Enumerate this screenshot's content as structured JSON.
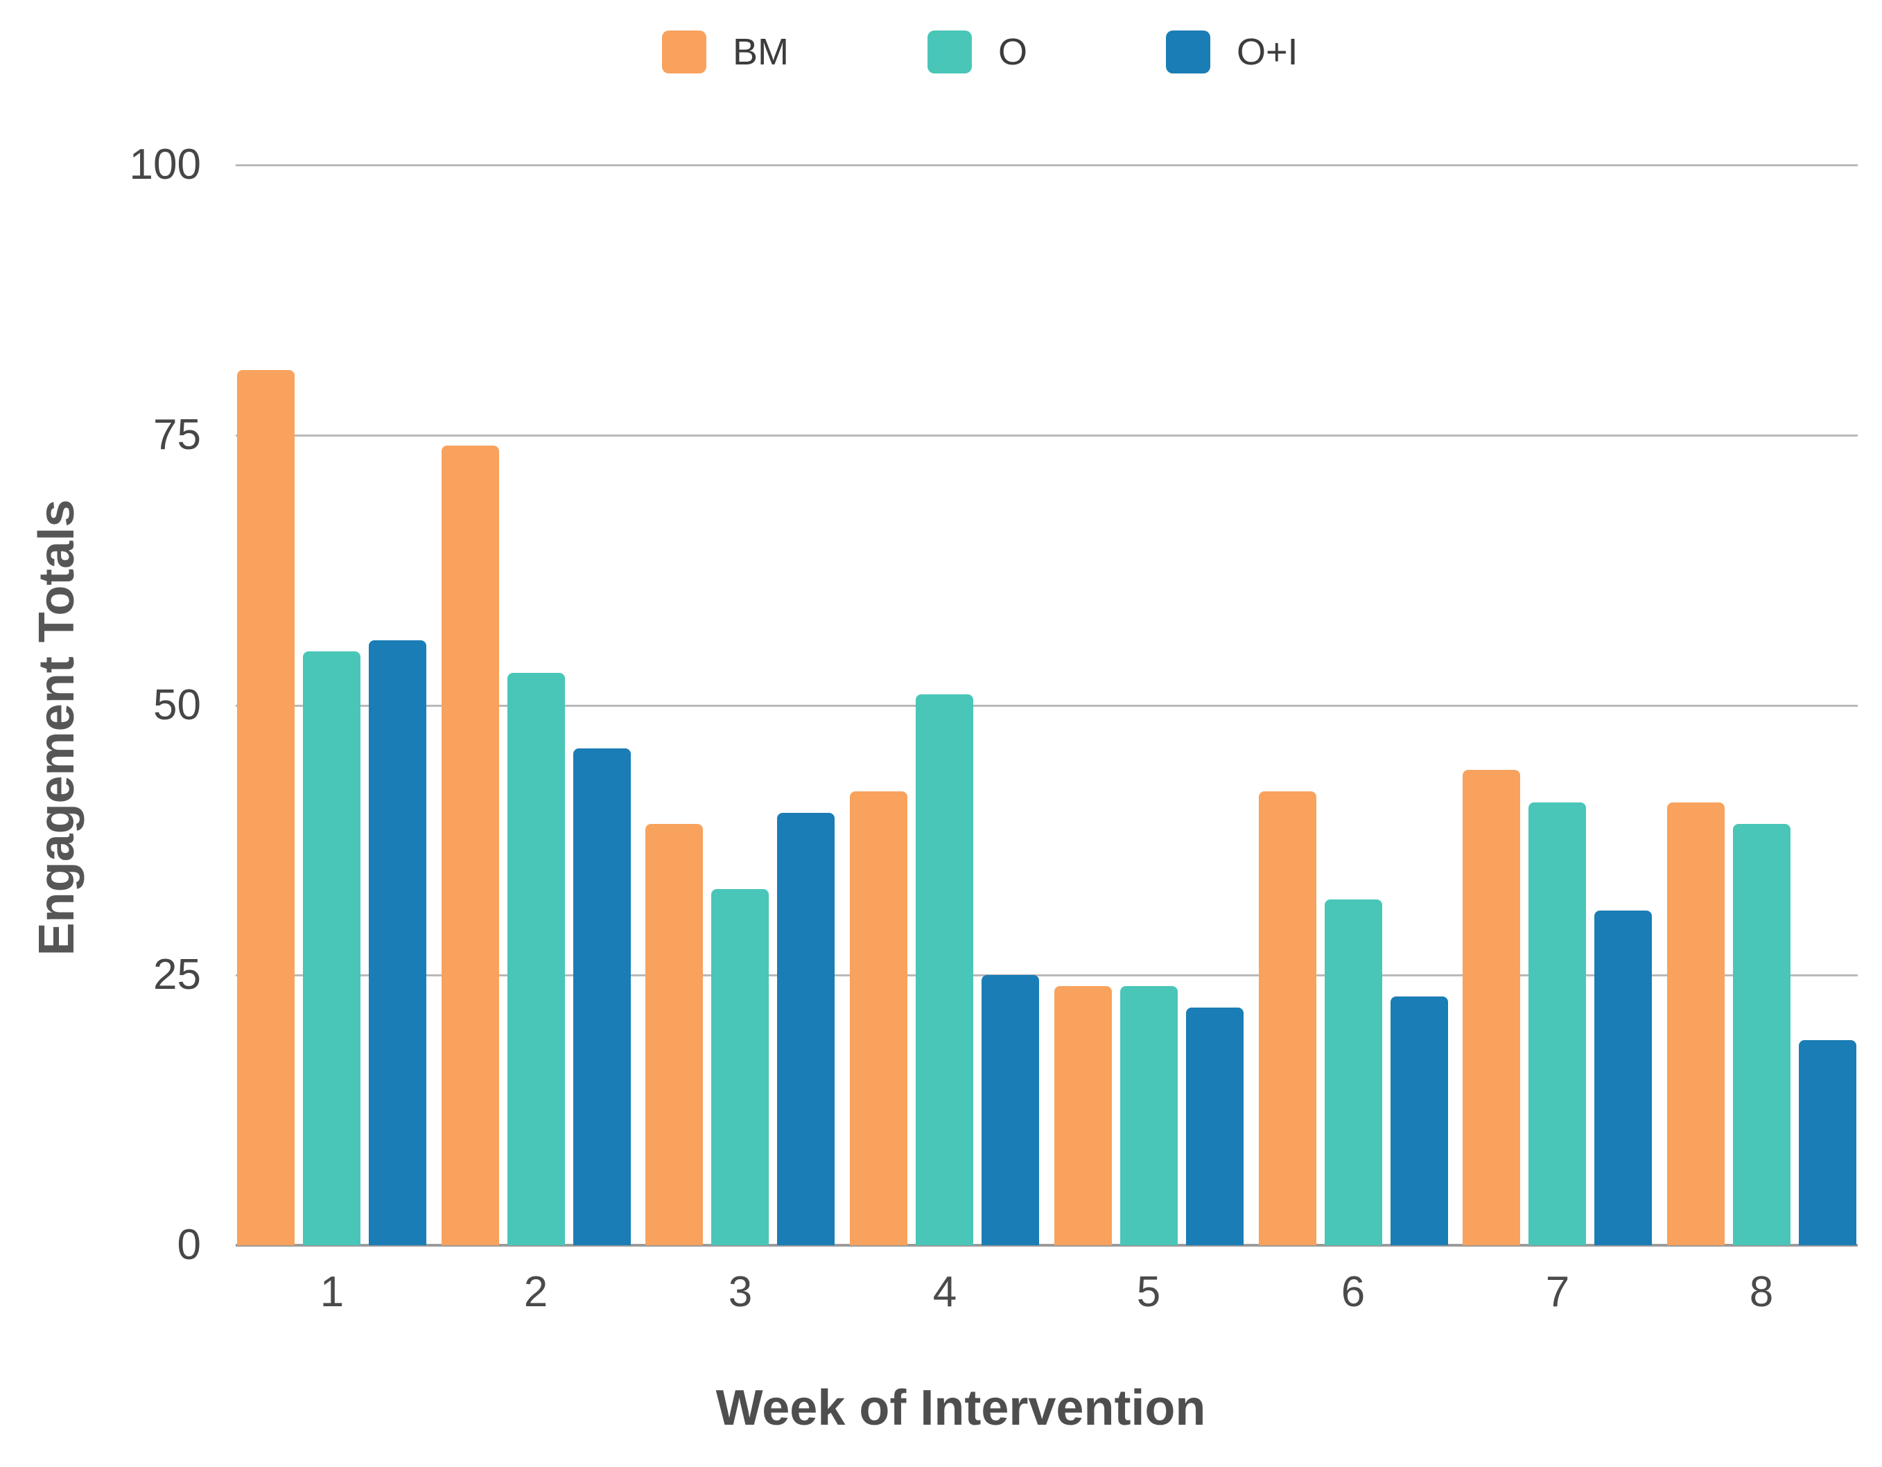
{
  "chart_data": {
    "type": "bar",
    "title": "",
    "categories": [
      "1",
      "2",
      "3",
      "4",
      "5",
      "6",
      "7",
      "8"
    ],
    "series": [
      {
        "name": "BM",
        "color": "#F8A25D",
        "values": [
          81,
          74,
          39,
          42,
          24,
          42,
          44,
          41
        ]
      },
      {
        "name": "O",
        "color": "#49C6B8",
        "values": [
          55,
          53,
          33,
          51,
          24,
          32,
          41,
          39
        ]
      },
      {
        "name": "O+I",
        "color": "#1A7DB5",
        "values": [
          56,
          46,
          40,
          25,
          22,
          23,
          31,
          19
        ]
      }
    ],
    "xlabel": "Week of Intervention",
    "ylabel": "Engagement Totals",
    "ylim": [
      0,
      100
    ],
    "yticks": [
      0,
      25,
      50,
      75,
      100
    ],
    "grid": true,
    "legend_position": "top"
  },
  "colors": {
    "background": "#FFFFFF",
    "gridline": "#B9B9B9",
    "baseline": "#9B9B9B",
    "tick_label": "#464646",
    "axis_title": "#565656",
    "legend_label": "#3C3C3C"
  }
}
